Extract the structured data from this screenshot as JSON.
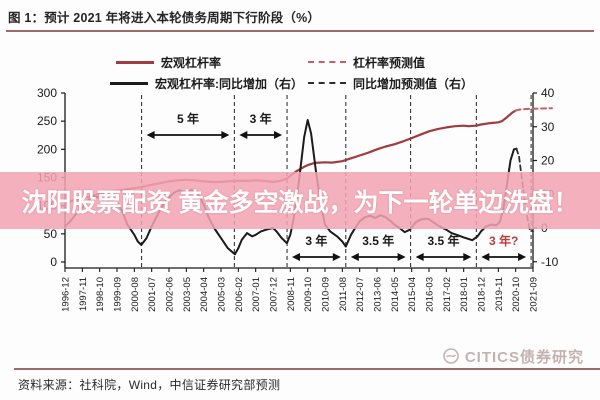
{
  "title": {
    "text": "图 1：预计 2021 年将进入本轮债务周期下行阶段（%）"
  },
  "legend": [
    {
      "label": "宏观杠杆率",
      "style": "solid",
      "color": "#a03c40"
    },
    {
      "label": "杠杆率预测值",
      "style": "dashed",
      "color": "#c4606e"
    },
    {
      "label": "宏观杠杆率:同比增加（右）",
      "style": "solid",
      "color": "#1b1b1b"
    },
    {
      "label": "同比增加预测值（右）",
      "style": "dashed",
      "color": "#2e2e2e"
    }
  ],
  "overlay_banner": {
    "text": "沈阳股票配资 黄金多空激战，为下一轮单边洗盘！",
    "bg_color": "#F2A4B2",
    "text_color": "#ffffff"
  },
  "chart_data": {
    "type": "line",
    "title": "预计 2021 年将进入本轮债务周期下行阶段（%）",
    "x_labels": [
      "1996-12",
      "1997-11",
      "1998-10",
      "1999-09",
      "2000-08",
      "2001-07",
      "2002-06",
      "2003-05",
      "2004-04",
      "2005-03",
      "2006-02",
      "2007-01",
      "2007-12",
      "2008-11",
      "2009-10",
      "2010-09",
      "2011-08",
      "2012-07",
      "2013-06",
      "2014-05",
      "2015-04",
      "2016-03",
      "2017-02",
      "2018-01",
      "2018-12",
      "2019-11",
      "2020-10",
      "2021-09"
    ],
    "y_left": {
      "min": 0,
      "max": 300,
      "ticks": [
        "0",
        "50",
        "100",
        "150",
        "200",
        "250",
        "300"
      ]
    },
    "y_right": {
      "min": -10,
      "max": 40,
      "ticks": [
        "-10",
        "0",
        "10",
        "20",
        "30",
        "40"
      ]
    },
    "grid": false,
    "legend_position": "top",
    "series": [
      {
        "name": "宏观杠杆率",
        "axis": "left",
        "style": "solid",
        "color": "#a03c40",
        "width": 2.2,
        "points": [
          [
            0,
            106
          ],
          [
            0.5,
            109
          ],
          [
            1,
            113
          ],
          [
            1.5,
            117
          ],
          [
            2,
            121
          ],
          [
            2.5,
            124
          ],
          [
            3,
            127
          ],
          [
            3.5,
            129
          ],
          [
            4,
            131
          ],
          [
            4.4,
            133
          ],
          [
            5,
            137
          ],
          [
            5.5,
            140
          ],
          [
            6,
            143
          ],
          [
            6.5,
            145
          ],
          [
            7,
            146
          ],
          [
            7.5,
            145
          ],
          [
            8,
            143
          ],
          [
            8.5,
            142
          ],
          [
            9,
            142
          ],
          [
            9.5,
            143.5
          ],
          [
            10,
            144
          ],
          [
            10.5,
            144
          ],
          [
            11,
            145
          ],
          [
            11.5,
            144
          ],
          [
            12,
            142
          ],
          [
            12.4,
            144
          ],
          [
            12.8,
            148
          ],
          [
            13,
            153
          ],
          [
            13.4,
            162
          ],
          [
            13.8,
            169
          ],
          [
            14,
            172
          ],
          [
            14.4,
            176
          ],
          [
            15,
            177
          ],
          [
            15.4,
            176.5
          ],
          [
            16,
            179
          ],
          [
            16.5,
            184
          ],
          [
            17,
            189
          ],
          [
            17.5,
            194
          ],
          [
            18,
            200
          ],
          [
            18.5,
            205
          ],
          [
            19,
            209
          ],
          [
            19.5,
            214
          ],
          [
            20,
            220
          ],
          [
            20.5,
            226
          ],
          [
            21,
            232
          ],
          [
            21.5,
            236
          ],
          [
            22,
            239
          ],
          [
            22.5,
            241
          ],
          [
            23,
            242
          ],
          [
            23.3,
            241
          ],
          [
            23.7,
            242
          ],
          [
            24,
            244
          ],
          [
            24.4,
            246
          ],
          [
            25,
            248
          ],
          [
            25.2,
            250
          ],
          [
            25.5,
            257
          ],
          [
            25.8,
            265
          ],
          [
            26,
            269
          ]
        ]
      },
      {
        "name": "杠杆率预测值",
        "axis": "left",
        "style": "dashed",
        "color": "#c4606e",
        "width": 2,
        "points": [
          [
            26,
            269
          ],
          [
            26.3,
            271
          ],
          [
            26.9,
            272
          ],
          [
            27.5,
            272.5
          ],
          [
            28.1,
            273
          ]
        ]
      },
      {
        "name": "宏观杠杆率:同比增加（右）",
        "axis": "right",
        "style": "solid",
        "color": "#1b1b1b",
        "width": 2,
        "points": [
          [
            0,
            0.5
          ],
          [
            0.3,
            2
          ],
          [
            0.7,
            4.5
          ],
          [
            1,
            6
          ],
          [
            1.3,
            8
          ],
          [
            1.6,
            9.5
          ],
          [
            2,
            9
          ],
          [
            2.3,
            7.5
          ],
          [
            2.6,
            8.2
          ],
          [
            3,
            7.5
          ],
          [
            3.3,
            5
          ],
          [
            3.6,
            1
          ],
          [
            4,
            -2
          ],
          [
            4.2,
            -4
          ],
          [
            4.4,
            -5
          ],
          [
            4.7,
            -3
          ],
          [
            5,
            0.5
          ],
          [
            5.4,
            4.5
          ],
          [
            5.8,
            8
          ],
          [
            6,
            9
          ],
          [
            6.3,
            10.5
          ],
          [
            6.6,
            11.2
          ],
          [
            7,
            10.5
          ],
          [
            7.3,
            11.3
          ],
          [
            7.6,
            10.8
          ],
          [
            8,
            7
          ],
          [
            8.3,
            3
          ],
          [
            8.6,
            0
          ],
          [
            9,
            -3
          ],
          [
            9.4,
            -6
          ],
          [
            9.8,
            -7.8
          ],
          [
            10,
            -6
          ],
          [
            10.2,
            -3.5
          ],
          [
            10.5,
            -1.5
          ],
          [
            10.8,
            -2.5
          ],
          [
            11,
            -2
          ],
          [
            11.3,
            -1
          ],
          [
            11.6,
            -0.5
          ],
          [
            12,
            0
          ],
          [
            12.2,
            -1
          ],
          [
            12.5,
            -3
          ],
          [
            12.8,
            -4.5
          ],
          [
            13,
            -2
          ],
          [
            13.2,
            3
          ],
          [
            13.5,
            14
          ],
          [
            13.8,
            27
          ],
          [
            14,
            32
          ],
          [
            14.2,
            28
          ],
          [
            14.5,
            16
          ],
          [
            14.8,
            6
          ],
          [
            15,
            1
          ],
          [
            15.3,
            -1
          ],
          [
            15.7,
            -2.5
          ],
          [
            16,
            -4
          ],
          [
            16.2,
            -5.5
          ],
          [
            16.5,
            -2
          ],
          [
            16.8,
            0.5
          ],
          [
            17,
            2
          ],
          [
            17.3,
            3.2
          ],
          [
            17.6,
            3.6
          ],
          [
            17.9,
            3
          ],
          [
            18.2,
            3.8
          ],
          [
            18.5,
            3.2
          ],
          [
            18.8,
            2
          ],
          [
            19,
            1
          ],
          [
            19.3,
            0
          ],
          [
            19.6,
            -1.2
          ],
          [
            19.9,
            -0.5
          ],
          [
            20.2,
            1.5
          ],
          [
            20.5,
            2.5
          ],
          [
            20.8,
            2.8
          ],
          [
            21,
            2.6
          ],
          [
            21.3,
            1.5
          ],
          [
            21.6,
            0.5
          ],
          [
            22,
            -0.5
          ],
          [
            22.3,
            -1.5
          ],
          [
            22.6,
            -2
          ],
          [
            23,
            -2.8
          ],
          [
            23.3,
            -3.3
          ],
          [
            23.5,
            -3.6
          ],
          [
            23.8,
            -2.5
          ],
          [
            24,
            -1
          ],
          [
            24.3,
            0.5
          ],
          [
            24.6,
            1
          ],
          [
            24.9,
            0.8
          ],
          [
            25.1,
            2
          ],
          [
            25.3,
            6
          ],
          [
            25.5,
            13
          ],
          [
            25.7,
            20
          ],
          [
            25.9,
            23.3
          ],
          [
            26.05,
            23.5
          ]
        ]
      },
      {
        "name": "同比增加预测值（右）",
        "axis": "right",
        "style": "dashed",
        "color": "#2e2e2e",
        "width": 1.8,
        "points": [
          [
            26.05,
            23.5
          ],
          [
            26.2,
            21
          ],
          [
            26.4,
            13
          ],
          [
            26.6,
            5
          ],
          [
            26.8,
            -0.3
          ],
          [
            27,
            -1
          ]
        ]
      }
    ],
    "cycle_boundaries_x": [
      4.42,
      9.77,
      12.81,
      16.2,
      19.94,
      23.73,
      26.89
    ],
    "phases": [
      {
        "label": "5 年",
        "from": 4.42,
        "to": 9.77,
        "row": "top",
        "color": "#1a1a1a"
      },
      {
        "label": "3 年",
        "from": 9.77,
        "to": 12.81,
        "row": "top",
        "color": "#1a1a1a"
      },
      {
        "label": "3 年",
        "from": 12.81,
        "to": 16.2,
        "row": "bottom",
        "color": "#1a1a1a"
      },
      {
        "label": "3.5 年",
        "from": 16.2,
        "to": 19.94,
        "row": "bottom",
        "color": "#1a1a1a"
      },
      {
        "label": "3.5 年",
        "from": 19.94,
        "to": 23.73,
        "row": "bottom",
        "color": "#1a1a1a"
      },
      {
        "label": "3 年?",
        "from": 23.73,
        "to": 26.89,
        "row": "bottom",
        "color": "#c3393b"
      }
    ]
  },
  "footer": {
    "source_text": "资料来源：社科院，Wind，中信证券研究部预测"
  },
  "watermark": {
    "text": "CITICS债券研究"
  }
}
